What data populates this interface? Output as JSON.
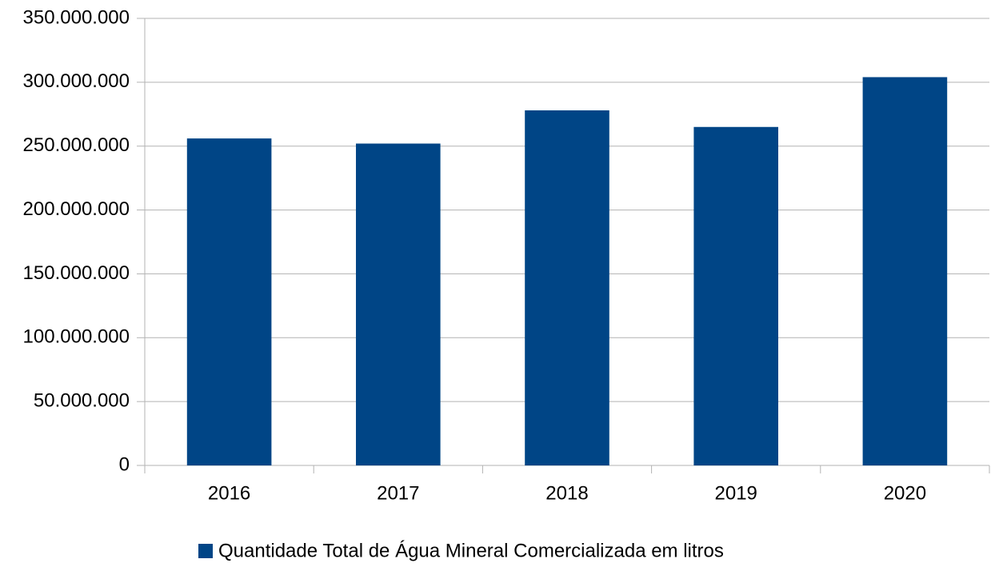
{
  "chart_data": {
    "type": "bar",
    "categories": [
      "2016",
      "2017",
      "2018",
      "2019",
      "2020"
    ],
    "series": [
      {
        "name": "Quantidade Total de Água Mineral Comercializada em litros",
        "color": "#004586",
        "values": [
          256000000,
          252000000,
          278000000,
          265000000,
          304000000
        ]
      }
    ],
    "ylim": [
      0,
      350000000
    ],
    "yticks": [
      0,
      {
        "value": 50000000,
        "label": "50.000.000"
      },
      {
        "value": 100000000,
        "label": "100.000.000"
      },
      {
        "value": 150000000,
        "label": "150.000.000"
      },
      {
        "value": 200000000,
        "label": "200.000.000"
      },
      {
        "value": 250000000,
        "label": "250.000.000"
      },
      {
        "value": 300000000,
        "label": "300.000.000"
      },
      {
        "value": 350000000,
        "label": "350.000.000"
      }
    ],
    "grid": true,
    "legend": "bottom"
  }
}
